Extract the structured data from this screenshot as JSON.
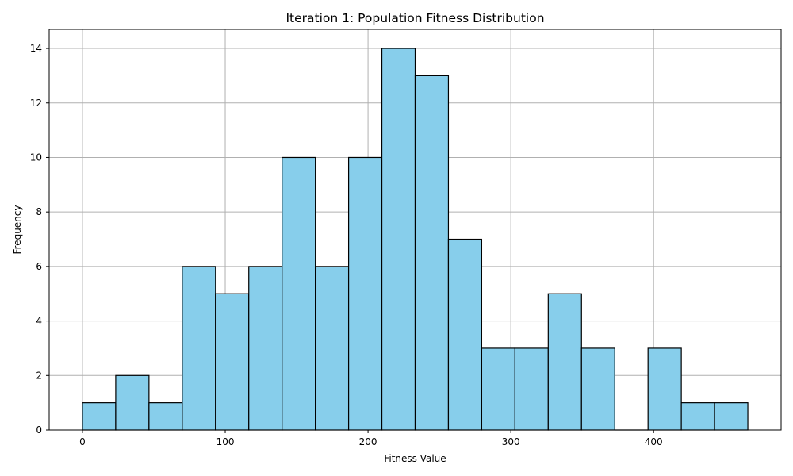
{
  "chart_data": {
    "type": "bar",
    "title": "Iteration 1: Population Fitness Distribution",
    "xlabel": "Fitness Value",
    "ylabel": "Frequency",
    "bin_edges": [
      0,
      23.3,
      46.6,
      69.9,
      93.2,
      116.5,
      139.8,
      163.1,
      186.4,
      209.7,
      233.0,
      256.3,
      279.6,
      302.9,
      326.2,
      349.5,
      372.8,
      396.1,
      419.4,
      442.7,
      466.0
    ],
    "values": [
      1,
      2,
      1,
      6,
      5,
      6,
      10,
      6,
      10,
      14,
      13,
      7,
      3,
      3,
      5,
      3,
      0,
      3,
      1,
      1
    ],
    "xlim": [
      -23.3,
      489.3
    ],
    "ylim": [
      0,
      14.7
    ],
    "x_ticks": [
      0,
      100,
      200,
      300,
      400
    ],
    "y_ticks": [
      0,
      2,
      4,
      6,
      8,
      10,
      12,
      14
    ],
    "grid": true,
    "bar_color": "#87ceeb",
    "edge_color": "#000000"
  }
}
